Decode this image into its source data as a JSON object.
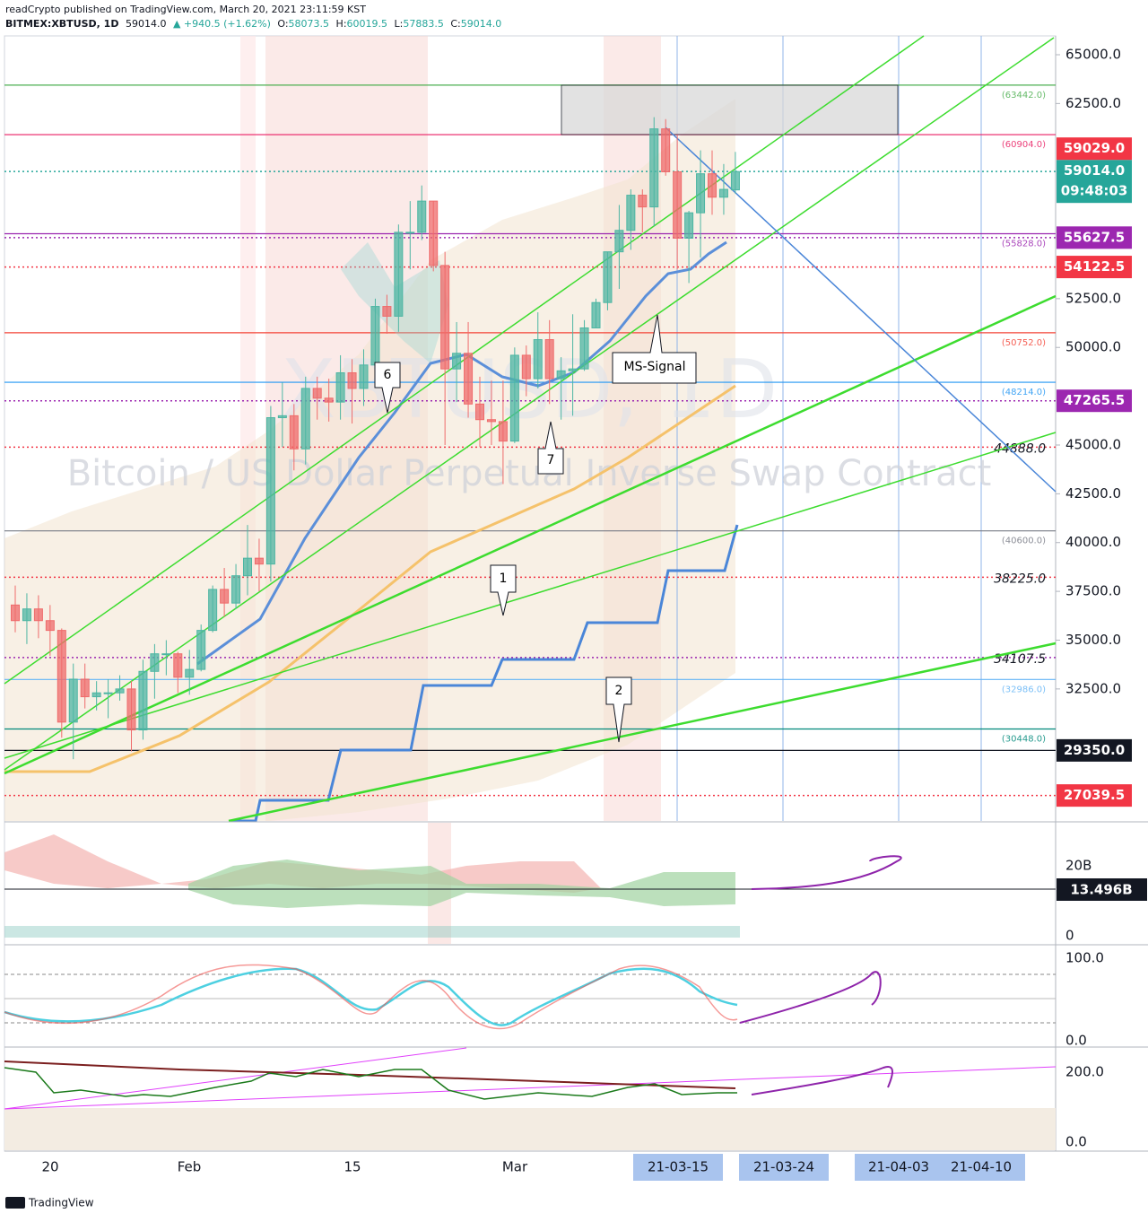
{
  "header": {
    "publisher": "readCrypto published on TradingView.com, March 20, 2021 23:11:59 KST",
    "symbol": "BITMEX:XBTUSD, 1D",
    "last": "59014.0",
    "change": "▲ +940.5 (+1.62%)",
    "ohlc": [
      {
        "key": "O:",
        "value": "58073.5"
      },
      {
        "key": "H:",
        "value": "60019.5"
      },
      {
        "key": "L:",
        "value": "57883.5"
      },
      {
        "key": "C:",
        "value": "59014.0"
      }
    ]
  },
  "chart_data": {
    "type": "candlestick",
    "open": [
      36800,
      36000,
      36600,
      36000,
      35500,
      30800,
      33000,
      32100,
      32300,
      32300,
      32500,
      30400,
      33400,
      34300,
      34300,
      33100,
      33500,
      35500,
      37600,
      36900,
      38300,
      39200,
      38900,
      46400,
      46500,
      44800,
      47900,
      47400,
      47200,
      48700,
      47900,
      49100,
      52100,
      51600,
      55900,
      55900,
      57500,
      54200,
      48900,
      49700,
      47100,
      46300,
      46200,
      45200,
      49600,
      48400,
      50400,
      48400,
      48800,
      48900,
      51000,
      52300,
      54900,
      56000,
      57800,
      57200,
      61200,
      59000,
      55600,
      56900,
      58900,
      57700,
      58073.5
    ],
    "high": [
      37800,
      37400,
      37300,
      36800,
      35600,
      33800,
      33800,
      32900,
      33000,
      33200,
      32900,
      34000,
      34800,
      35000,
      34400,
      34500,
      35800,
      37800,
      38700,
      38900,
      40900,
      40200,
      47000,
      48200,
      47100,
      48500,
      48500,
      48400,
      49600,
      49400,
      49900,
      52500,
      52700,
      56300,
      57500,
      58300,
      57500,
      54900,
      51300,
      51300,
      48500,
      48300,
      48300,
      50000,
      50100,
      51800,
      51400,
      49500,
      51700,
      51400,
      52500,
      54900,
      57300,
      58100,
      58100,
      61800,
      61700,
      60900,
      57000,
      60100,
      60100,
      59400,
      60019.5
    ],
    "low": [
      35400,
      34800,
      35100,
      34200,
      30000,
      28900,
      31500,
      31400,
      31000,
      31900,
      29300,
      29900,
      32000,
      33200,
      32300,
      32200,
      33400,
      35400,
      36200,
      36600,
      37300,
      37500,
      38000,
      44900,
      43700,
      44000,
      46300,
      46200,
      46300,
      46100,
      47000,
      48900,
      50700,
      50800,
      54000,
      55500,
      53900,
      45000,
      47200,
      46400,
      44900,
      45000,
      43000,
      45100,
      47500,
      47900,
      47100,
      46300,
      46500,
      48800,
      51000,
      51900,
      53000,
      55000,
      55900,
      56200,
      58800,
      54000,
      53300,
      54600,
      56800,
      56800,
      57883.5
    ],
    "close": [
      36000,
      36600,
      36000,
      35500,
      30800,
      33000,
      32100,
      32300,
      32300,
      32500,
      30400,
      33400,
      34300,
      34300,
      33100,
      33500,
      35500,
      37600,
      36900,
      38300,
      39200,
      38900,
      46400,
      46500,
      44800,
      47900,
      47400,
      47200,
      48700,
      47900,
      49100,
      52100,
      51600,
      55900,
      55900,
      57500,
      54200,
      48900,
      49700,
      47100,
      46300,
      46200,
      45200,
      49600,
      48400,
      50400,
      48400,
      48800,
      48900,
      51000,
      52300,
      54900,
      56000,
      57800,
      57200,
      61200,
      59000,
      55600,
      56900,
      58900,
      57700,
      58100,
      59014
    ],
    "up_color": "#4db6a3",
    "down_color": "#ef6b6b",
    "ylim": [
      25735,
      65965
    ],
    "yticks": [
      {
        "value": 65000,
        "label": "65000.0"
      },
      {
        "value": 62500,
        "label": "62500.0"
      },
      {
        "value": 52500,
        "label": "52500.0"
      },
      {
        "value": 50000,
        "label": "50000.0"
      },
      {
        "value": 45000,
        "label": "45000.0"
      },
      {
        "value": 42500,
        "label": "42500.0"
      },
      {
        "value": 40000,
        "label": "40000.0"
      },
      {
        "value": 37500,
        "label": "37500.0"
      },
      {
        "value": 35000,
        "label": "35000.0"
      },
      {
        "value": 32500,
        "label": "32500.0"
      }
    ],
    "levels": [
      {
        "value": 63442,
        "label": "(63442.0)",
        "color": "#4caf50",
        "line": "solid",
        "tag": "small"
      },
      {
        "value": 60904,
        "label": "(60904.0)",
        "color": "#e91e63",
        "line": "solid",
        "tag": "small"
      },
      {
        "value": 59014,
        "label": "59014.0",
        "countdown": "09:48:03",
        "color": "#26a69a",
        "line": "dotted",
        "tag": "badge"
      },
      {
        "value": 59029,
        "label": "59029.0",
        "color": "#f23645",
        "line": "none",
        "tag": "badge"
      },
      {
        "value": 55828,
        "label": "(55828.0)",
        "color": "#9c27b0",
        "line": "solid",
        "tag": "small"
      },
      {
        "value": 55627.5,
        "label": "55627.5",
        "color": "#9c27b0",
        "line": "dotted",
        "tag": "badge"
      },
      {
        "value": 54122.5,
        "label": "54122.5",
        "color": "#f23645",
        "line": "dotted",
        "tag": "badge"
      },
      {
        "value": 50752,
        "label": "(50752.0)",
        "color": "#f44336",
        "line": "solid",
        "tag": "small"
      },
      {
        "value": 48214,
        "label": "(48214.0)",
        "color": "#2196f3",
        "line": "solid",
        "tag": "small"
      },
      {
        "value": 47265.5,
        "label": "47265.5",
        "color": "#9c27b0",
        "line": "dotted",
        "tag": "badge"
      },
      {
        "value": 44888,
        "label": "44888.0",
        "color": "#f23645",
        "line": "dotted",
        "tag": "italic"
      },
      {
        "value": 40600,
        "label": "(40600.0)",
        "color": "#787b86",
        "line": "solid",
        "tag": "small"
      },
      {
        "value": 38225,
        "label": "38225.0",
        "color": "#f23645",
        "line": "dotted",
        "tag": "italic"
      },
      {
        "value": 34107.5,
        "label": "34107.5",
        "color": "#9c27b0",
        "line": "dotted",
        "tag": "italic"
      },
      {
        "value": 32986,
        "label": "(32986.0)",
        "color": "#64b5f6",
        "line": "solid",
        "tag": "small"
      },
      {
        "value": 30448,
        "label": "(30448.0)",
        "color": "#00897b",
        "line": "solid",
        "tag": "small"
      },
      {
        "value": 29350,
        "label": "29350.0",
        "color": "#131722",
        "line": "solid",
        "tag": "badge"
      },
      {
        "value": 27039.5,
        "label": "27039.5",
        "color": "#f23645",
        "line": "dotted",
        "tag": "badge"
      }
    ]
  },
  "watermark": {
    "symbol": "XBTUSD, 1D",
    "description": "Bitcoin / US Dollar Perpetual Inverse Swap Contract"
  },
  "annotations": [
    "6",
    "7",
    "1",
    "2",
    "MS-Signal"
  ],
  "x_axis": [
    "20",
    "Feb",
    "15",
    "Mar",
    "21-03-15",
    "21-03-24",
    "21-04-03",
    "21-04-10"
  ],
  "panes": [
    {
      "axis_labels": [
        "20B",
        "0"
      ],
      "badge": "13.496B"
    },
    {
      "axis_labels": [
        "100.0",
        "0.0"
      ]
    },
    {
      "axis_labels": [
        "200.0",
        "0.0"
      ]
    }
  ],
  "footer": {
    "brand": "TradingView"
  }
}
